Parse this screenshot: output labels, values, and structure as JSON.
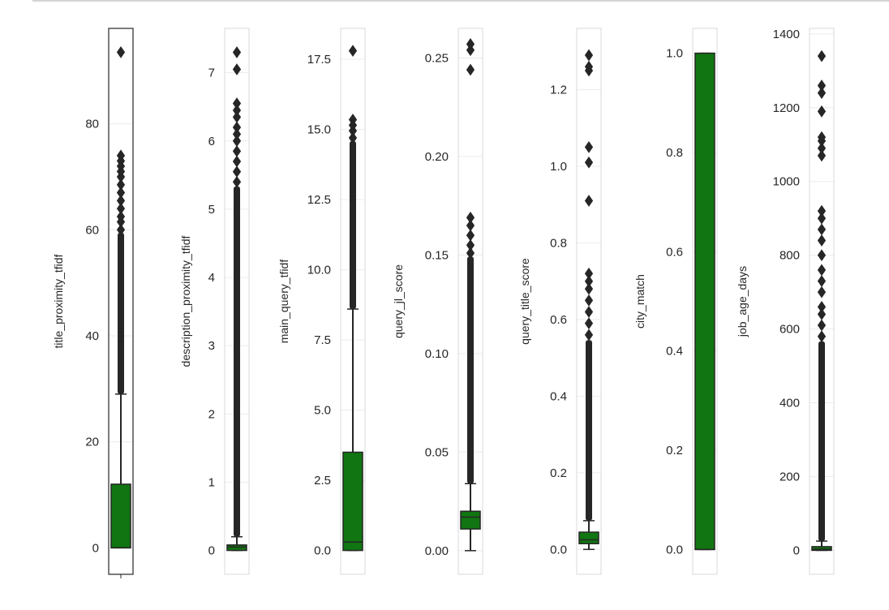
{
  "colors": {
    "box_fill": "#117511",
    "box_edge": "#262626",
    "frame": "#d9d9d9",
    "grid": "#ececec",
    "page": "#ffffff"
  },
  "chart_data": [
    {
      "type": "box",
      "ylabel": "title_proximity_tfidf",
      "ylim": [
        -5,
        98
      ],
      "yticks": [
        0,
        20,
        40,
        60,
        80
      ],
      "ytick_labels": [
        "0",
        "20",
        "40",
        "60",
        "80"
      ],
      "xtick_mark": true,
      "box": {
        "q1": 0,
        "median": 0,
        "q3": 12,
        "whisker_low": 0,
        "whisker_high": 29
      },
      "outlier_band": [
        29,
        59
      ],
      "outliers": [
        60,
        61.5,
        62.5,
        64,
        65.5,
        67,
        68.5,
        70,
        71,
        72,
        73,
        74,
        93.5
      ]
    },
    {
      "type": "box",
      "ylabel": "description_proximity_tfidf",
      "ylim": [
        -0.35,
        7.65
      ],
      "yticks": [
        0,
        1,
        2,
        3,
        4,
        5,
        6,
        7
      ],
      "ytick_labels": [
        "0",
        "1",
        "2",
        "3",
        "4",
        "5",
        "6",
        "7"
      ],
      "box": {
        "q1": 0,
        "median": 0.05,
        "q3": 0.08,
        "whisker_low": 0,
        "whisker_high": 0.2
      },
      "outlier_band": [
        0.2,
        5.3
      ],
      "outliers": [
        5.4,
        5.55,
        5.7,
        5.85,
        6.0,
        6.1,
        6.2,
        6.35,
        6.45,
        6.55,
        7.05,
        7.3
      ]
    },
    {
      "type": "box",
      "ylabel": "main_query_tfidf",
      "ylim": [
        -0.85,
        18.6
      ],
      "yticks": [
        0,
        2.5,
        5,
        7.5,
        10,
        12.5,
        15,
        17.5
      ],
      "ytick_labels": [
        "0.0",
        "2.5",
        "5.0",
        "7.5",
        "10.0",
        "12.5",
        "15.0",
        "17.5"
      ],
      "box": {
        "q1": 0,
        "median": 0.3,
        "q3": 3.5,
        "whisker_low": 0,
        "whisker_high": 8.6
      },
      "outlier_band": [
        8.6,
        14.5
      ],
      "outliers": [
        14.7,
        14.95,
        15.15,
        15.35,
        17.8
      ]
    },
    {
      "type": "box",
      "ylabel": "query_jl_score",
      "ylim": [
        -0.012,
        0.265
      ],
      "yticks": [
        0,
        0.05,
        0.1,
        0.15,
        0.2,
        0.25
      ],
      "ytick_labels": [
        "0.00",
        "0.05",
        "0.10",
        "0.15",
        "0.20",
        "0.25"
      ],
      "box": {
        "q1": 0.011,
        "median": 0.017,
        "q3": 0.02,
        "whisker_low": 0,
        "whisker_high": 0.034
      },
      "outlier_band": [
        0.034,
        0.148
      ],
      "outliers": [
        0.151,
        0.155,
        0.16,
        0.165,
        0.169,
        0.244,
        0.254,
        0.257
      ]
    },
    {
      "type": "box",
      "ylabel": "query_title_score",
      "ylim": [
        -0.065,
        1.36
      ],
      "yticks": [
        0,
        0.2,
        0.4,
        0.6,
        0.8,
        1.0,
        1.2
      ],
      "ytick_labels": [
        "0.0",
        "0.2",
        "0.4",
        "0.6",
        "0.8",
        "1.0",
        "1.2"
      ],
      "box": {
        "q1": 0.015,
        "median": 0.025,
        "q3": 0.045,
        "whisker_low": 0,
        "whisker_high": 0.075
      },
      "outlier_band": [
        0.075,
        0.54
      ],
      "outliers": [
        0.56,
        0.59,
        0.62,
        0.65,
        0.68,
        0.7,
        0.72,
        0.91,
        1.01,
        1.05,
        1.25,
        1.26,
        1.29
      ]
    },
    {
      "type": "box",
      "ylabel": "city_match",
      "ylim": [
        -0.05,
        1.05
      ],
      "yticks": [
        0,
        0.2,
        0.4,
        0.6,
        0.8,
        1.0
      ],
      "ytick_labels": [
        "0.0",
        "0.2",
        "0.4",
        "0.6",
        "0.8",
        "1.0"
      ],
      "box": {
        "q1": 0,
        "median": 0,
        "q3": 1,
        "whisker_low": 0,
        "whisker_high": 1
      },
      "outlier_band": null,
      "outliers": []
    },
    {
      "type": "box",
      "ylabel": "job_age_days",
      "ylim": [
        -65,
        1415
      ],
      "yticks": [
        0,
        200,
        400,
        600,
        800,
        1000,
        1200,
        1400
      ],
      "ytick_labels": [
        "0",
        "200",
        "400",
        "600",
        "800",
        "1000",
        "1200",
        "1400"
      ],
      "box": {
        "q1": 0,
        "median": 3,
        "q3": 10,
        "whisker_low": 0,
        "whisker_high": 25
      },
      "outlier_band": [
        25,
        560
      ],
      "outliers": [
        580,
        610,
        640,
        660,
        700,
        730,
        760,
        800,
        840,
        870,
        900,
        920,
        1070,
        1090,
        1110,
        1120,
        1190,
        1240,
        1260,
        1340
      ]
    }
  ]
}
